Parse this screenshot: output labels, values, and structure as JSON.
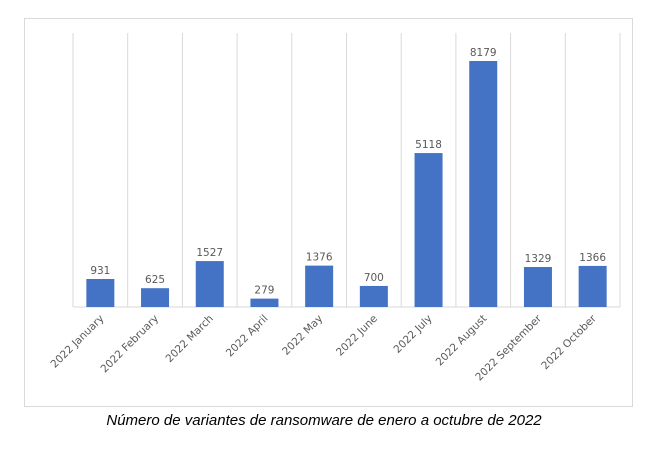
{
  "caption": "Número de variantes de ransomware de enero a octubre de 2022",
  "colors": {
    "bar": "#4472c4",
    "grid": "#d9d9d9",
    "axis": "#d9d9d9",
    "label": "#595959"
  },
  "chart_data": {
    "type": "bar",
    "categories": [
      "2022 January",
      "2022 February",
      "2022 March",
      "2022 April",
      "2022 May",
      "2022 June",
      "2022 July",
      "2022 August",
      "2022 September",
      "2022 October"
    ],
    "values": [
      931,
      625,
      1527,
      279,
      1376,
      700,
      5118,
      8179,
      1329,
      1366
    ],
    "data_labels": [
      "931",
      "625",
      "1527",
      "279",
      "1376",
      "700",
      "5118",
      "8179",
      "1329",
      "1366"
    ],
    "title": "",
    "xlabel": "",
    "ylabel": "",
    "ylim": [
      0,
      9000
    ],
    "grid": "vertical",
    "legend": "none"
  }
}
